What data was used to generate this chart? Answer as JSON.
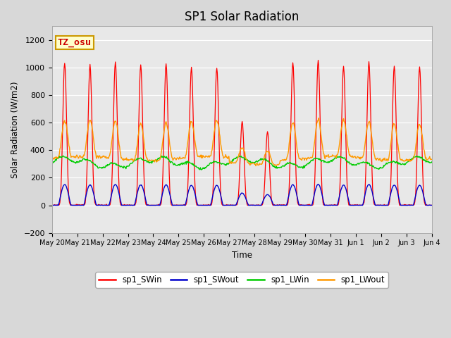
{
  "title": "SP1 Solar Radiation",
  "ylabel": "Solar Radiation (W/m2)",
  "xlabel": "Time",
  "ylim": [
    -200,
    1300
  ],
  "yticks": [
    -200,
    0,
    200,
    400,
    600,
    800,
    1000,
    1200
  ],
  "bg_color": "#d8d8d8",
  "plot_bg_color": "#e8e8e8",
  "colors": {
    "sp1_SWin": "#ff0000",
    "sp1_SWout": "#0000cc",
    "sp1_LWin": "#00cc00",
    "sp1_LWout": "#ff9900"
  },
  "annotation_text": "TZ_osu",
  "annotation_color": "#cc0000",
  "annotation_bg": "#ffffcc",
  "annotation_border": "#cc9900",
  "tick_labels": [
    "May 20",
    "May 21",
    "May 22",
    "May 23",
    "May 24",
    "May 25",
    "May 26",
    "May 27",
    "May 28",
    "May 29",
    "May 30",
    "May 31",
    "Jun 1",
    "Jun 2",
    "Jun 3",
    "Jun 4"
  ],
  "day_scales_SWin": [
    1035,
    1020,
    1042,
    1020,
    1025,
    1000,
    998,
    610,
    535,
    1035,
    1050,
    1010,
    1040,
    1012,
    1002
  ],
  "cloudy_days": [
    7,
    8
  ]
}
